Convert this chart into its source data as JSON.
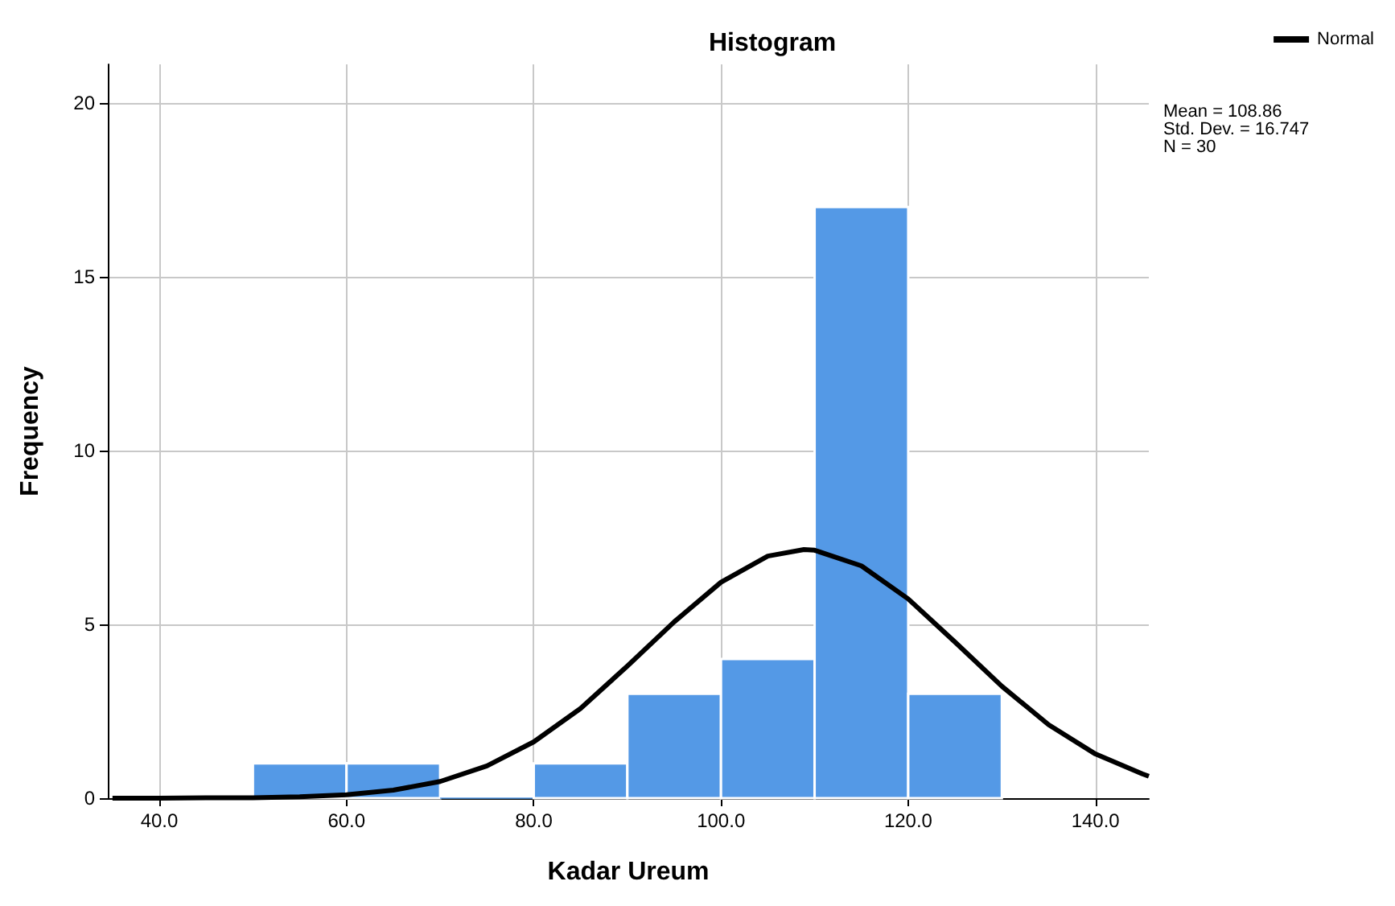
{
  "chart_data": {
    "type": "histogram",
    "title": "Histogram",
    "xlabel": "Kadar Ureum",
    "ylabel": "Frequency",
    "bins": [
      50,
      60,
      70,
      80,
      90,
      100,
      110,
      120,
      130
    ],
    "series": [
      {
        "color": "#5499e6",
        "values": [
          1,
          1,
          0,
          1,
          3,
          4,
          17,
          3
        ]
      },
      {
        "type": "line",
        "name": "Normal",
        "color": "#000000",
        "x": [
          35,
          40,
          45,
          50,
          55,
          60,
          65,
          70,
          75,
          80,
          85,
          90,
          95,
          100,
          105,
          108.86,
          110,
          115,
          120,
          125,
          130,
          135,
          140,
          145,
          145.7
        ],
        "values": [
          0,
          0,
          0.01,
          0.01,
          0.04,
          0.1,
          0.23,
          0.48,
          0.93,
          1.62,
          2.58,
          3.8,
          5.07,
          6.21,
          6.96,
          7.15,
          7.13,
          6.68,
          5.73,
          4.49,
          3.22,
          2.11,
          1.27,
          0.7,
          0.63
        ]
      }
    ],
    "xlim": [
      34.5,
      145.7
    ],
    "xticks": [
      {
        "value": 40,
        "label": "40.0"
      },
      {
        "value": 60,
        "label": "60.0"
      },
      {
        "value": 80,
        "label": "80.0"
      },
      {
        "value": 100,
        "label": "100.0"
      },
      {
        "value": 120,
        "label": "120.0"
      },
      {
        "value": 140,
        "label": "140.0"
      }
    ],
    "ylim": [
      0,
      21.1
    ],
    "yticks": [
      0,
      5,
      10,
      15,
      20
    ],
    "grid": true,
    "legend": "top right",
    "marker": "none",
    "line_style": "solid",
    "annotations": [
      "Mean = 108.86",
      "Std. Dev. = 16.747",
      "N = 30"
    ]
  }
}
